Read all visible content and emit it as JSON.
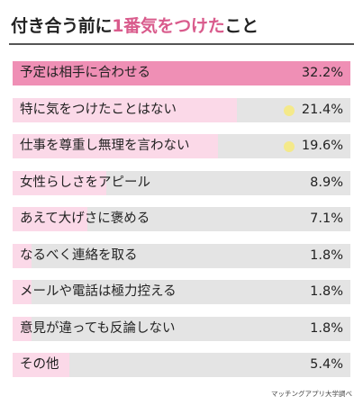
{
  "title": {
    "prefix": "付き合う前に",
    "highlight": "1番気をつけた",
    "suffix": "こと"
  },
  "source": "マッチングアプリ大学調べ",
  "colors": {
    "accent": "#d95b8c",
    "bar_strong": "#ef8fb5",
    "bar_light": "#fbd9e8",
    "track": "#e4e4e4",
    "dot": "#f4e98a"
  },
  "chart_data": {
    "type": "bar",
    "orientation": "horizontal",
    "title": "付き合う前に1番気をつけたこと",
    "value_unit": "%",
    "categories": [
      "予定は相手に合わせる",
      "特に気をつけたことはない",
      "仕事を尊重し無理を言わない",
      "女性らしさをアピール",
      "あえて大げさに褒める",
      "なるべく連絡を取る",
      "メールや電話は極力控える",
      "意見が違っても反論しない",
      "その他"
    ],
    "values": [
      32.2,
      21.4,
      19.6,
      8.9,
      7.1,
      1.8,
      1.8,
      1.8,
      5.4
    ],
    "value_labels": [
      "32.2%",
      "21.4%",
      "19.6%",
      "8.9%",
      "7.1%",
      "1.8%",
      "1.8%",
      "1.8%",
      "5.4%"
    ],
    "highlight_dot": [
      false,
      true,
      true,
      false,
      false,
      false,
      false,
      false,
      false
    ],
    "xlim": [
      0,
      32.2
    ],
    "grid": false,
    "legend": "none"
  }
}
